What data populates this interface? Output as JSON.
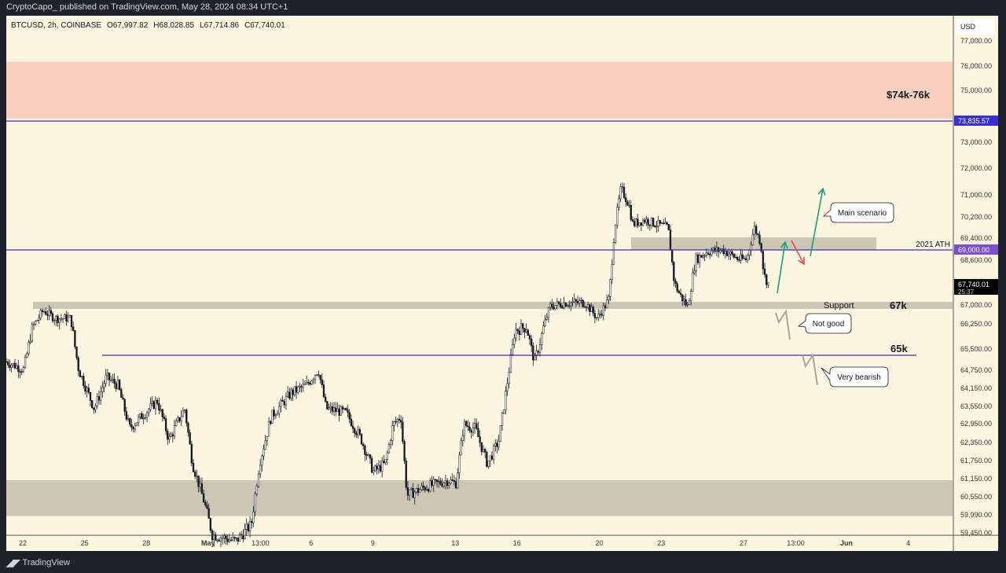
{
  "header": {
    "publisher_line": "CryptoCapo_ published on TradingView.com, May 28, 2024 08:34 UTC+1"
  },
  "legend": {
    "symbol": "BTCUSD, 2h, COINBASE",
    "open": "O67,997.82",
    "high": "H68,028.85",
    "low": "L67,714.86",
    "close": "C67,740.01"
  },
  "footer": {
    "brand": "TradingView"
  },
  "colors": {
    "background": "#fcf6e0",
    "resistance_zone": "#f9cfbd",
    "gray_zone": "#cdc6b4",
    "line": "#3f2fb8",
    "ath_label": "#7a4fd0",
    "arrow_up": "#1a9f7c",
    "arrow_down": "#ef4b4b"
  },
  "chart_data": {
    "type": "candlestick",
    "currency": "USD",
    "interval": "2h",
    "y_ticks": [
      77000,
      76000,
      75000,
      73000,
      72000,
      71000,
      70200,
      69400,
      68600,
      67000,
      66250,
      65500,
      64750,
      64150,
      63550,
      62950,
      62350,
      61750,
      61150,
      60550,
      59990,
      59450
    ],
    "y_tick_labels": [
      "77,000.00",
      "76,000.00",
      "75,000.00",
      "73,000.00",
      "72,000.00",
      "71,000.00",
      "70,200.00",
      "69,400.00",
      "68,600.00",
      "67,000.00",
      "66,250.00",
      "65,500.00",
      "64,750.00",
      "64,150.00",
      "63,550.00",
      "62,950.00",
      "62,350.00",
      "61,750.00",
      "61,150.00",
      "60,550.00",
      "59,990.00",
      "59,450.00"
    ],
    "x_ticks": [
      {
        "day": 0,
        "label": "22"
      },
      {
        "day": 3,
        "label": "25"
      },
      {
        "day": 6,
        "label": "28"
      },
      {
        "day": 9,
        "label": "May"
      },
      {
        "day": 11.54,
        "label": "13:00"
      },
      {
        "day": 14,
        "label": "6"
      },
      {
        "day": 17,
        "label": "9"
      },
      {
        "day": 21,
        "label": "13"
      },
      {
        "day": 24,
        "label": "16"
      },
      {
        "day": 28,
        "label": "20"
      },
      {
        "day": 31,
        "label": "23"
      },
      {
        "day": 35,
        "label": "27"
      },
      {
        "day": 37.54,
        "label": "13:00"
      },
      {
        "day": 40,
        "label": "Jun"
      },
      {
        "day": 43,
        "label": "4"
      }
    ],
    "price_path": [
      [
        -0.8,
        65050
      ],
      [
        0.04,
        64780
      ],
      [
        0.42,
        66060
      ],
      [
        0.99,
        66780
      ],
      [
        1.56,
        66470
      ],
      [
        2.33,
        66470
      ],
      [
        2.71,
        64780
      ],
      [
        3.47,
        63470
      ],
      [
        4.05,
        64520
      ],
      [
        4.62,
        64250
      ],
      [
        5.19,
        62800
      ],
      [
        5.95,
        63330
      ],
      [
        6.53,
        63730
      ],
      [
        7.1,
        62430
      ],
      [
        7.86,
        63470
      ],
      [
        8.24,
        61650
      ],
      [
        8.82,
        60360
      ],
      [
        9.2,
        59400
      ],
      [
        10.34,
        59200
      ],
      [
        11.1,
        59700
      ],
      [
        11.49,
        61650
      ],
      [
        12.06,
        63200
      ],
      [
        13.02,
        63990
      ],
      [
        13.78,
        64250
      ],
      [
        14.35,
        64780
      ],
      [
        14.73,
        63470
      ],
      [
        15.69,
        63330
      ],
      [
        16.45,
        62430
      ],
      [
        17.02,
        61380
      ],
      [
        17.6,
        61650
      ],
      [
        17.98,
        62920
      ],
      [
        18.36,
        63200
      ],
      [
        18.66,
        60600
      ],
      [
        19.5,
        60860
      ],
      [
        20.65,
        61100
      ],
      [
        21.03,
        60990
      ],
      [
        21.41,
        62920
      ],
      [
        21.98,
        62800
      ],
      [
        22.56,
        61650
      ],
      [
        23.13,
        62430
      ],
      [
        23.51,
        64250
      ],
      [
        23.89,
        66060
      ],
      [
        24.47,
        66160
      ],
      [
        24.85,
        65050
      ],
      [
        25.61,
        66940
      ],
      [
        26.37,
        67080
      ],
      [
        27.33,
        67080
      ],
      [
        27.9,
        66470
      ],
      [
        28.47,
        67220
      ],
      [
        28.74,
        69790
      ],
      [
        29.05,
        71240
      ],
      [
        29.43,
        70660
      ],
      [
        29.62,
        69930
      ],
      [
        30.19,
        70090
      ],
      [
        30.76,
        69930
      ],
      [
        31.34,
        69790
      ],
      [
        31.64,
        67790
      ],
      [
        31.91,
        67360
      ],
      [
        32.29,
        66940
      ],
      [
        32.67,
        68630
      ],
      [
        33.24,
        68910
      ],
      [
        34.01,
        68970
      ],
      [
        34.77,
        68630
      ],
      [
        35.15,
        68630
      ],
      [
        35.53,
        69790
      ],
      [
        35.84,
        69250
      ],
      [
        35.99,
        68070
      ],
      [
        36.22,
        67740
      ]
    ],
    "levels": [
      {
        "name": "resistance-zone",
        "from": 74000,
        "to": 76300,
        "label": "$74k-76k"
      },
      {
        "name": "resistance-line",
        "price": 73835.57,
        "label": "73,835.57"
      },
      {
        "name": "ath-line",
        "price": 69000,
        "label": "69,000.00",
        "note": "2021 ATH"
      },
      {
        "name": "support-zone",
        "from": 66880,
        "to": 67120,
        "label": "Support",
        "value_label": "67k"
      },
      {
        "name": "support-line",
        "price": 65300,
        "label": "65k"
      },
      {
        "name": "demand-zone",
        "from": 60000,
        "to": 61150
      }
    ],
    "current_price": {
      "label": "67,740.01",
      "countdown": "25:37"
    },
    "annotations": {
      "main": "Main scenario",
      "not_good": "Not good",
      "very_bearish": "Very bearish"
    }
  }
}
